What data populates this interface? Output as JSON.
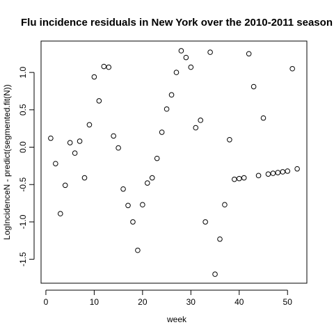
{
  "chart_data": {
    "type": "scatter",
    "title": "Flu incidence residuals in New York over the 2010-2011 season",
    "xlabel": "week",
    "ylabel": "LogIncidenceN - predict(segmented.fit(N))",
    "xlim": [
      -1,
      54
    ],
    "ylim": [
      -1.82,
      1.42
    ],
    "xticks": [
      0,
      10,
      20,
      30,
      40,
      50
    ],
    "yticks": [
      -1.5,
      -1.0,
      -0.5,
      0.0,
      0.5,
      1.0
    ],
    "ytick_labels": [
      "-1.5",
      "-1.0",
      "-0.5",
      "0.0",
      "0.5",
      "1.0"
    ],
    "grid": false,
    "marker": "open-circle",
    "x": [
      1,
      2,
      3,
      4,
      5,
      6,
      7,
      8,
      9,
      10,
      11,
      12,
      13,
      14,
      15,
      16,
      17,
      18,
      19,
      20,
      21,
      22,
      23,
      24,
      25,
      26,
      27,
      28,
      29,
      30,
      31,
      32,
      33,
      34,
      35,
      36,
      37,
      38,
      39,
      40,
      41,
      42,
      43,
      44,
      45,
      46,
      47,
      48,
      49,
      50,
      51,
      52
    ],
    "y": [
      0.12,
      -0.22,
      -0.89,
      -0.51,
      0.06,
      -0.08,
      0.08,
      -0.41,
      0.3,
      0.94,
      0.62,
      1.08,
      1.07,
      0.15,
      -0.01,
      -0.56,
      -0.78,
      -1.0,
      -1.38,
      -0.77,
      -0.48,
      -0.41,
      -0.15,
      0.2,
      0.51,
      0.7,
      1.0,
      1.29,
      1.2,
      1.07,
      0.26,
      0.36,
      -1.0,
      1.27,
      -1.7,
      -1.23,
      -0.77,
      0.1,
      -0.43,
      -0.42,
      -0.41,
      1.25,
      0.81,
      -0.38,
      0.39,
      -0.36,
      -0.35,
      -0.34,
      -0.33,
      -0.32,
      1.05,
      -0.29
    ]
  }
}
